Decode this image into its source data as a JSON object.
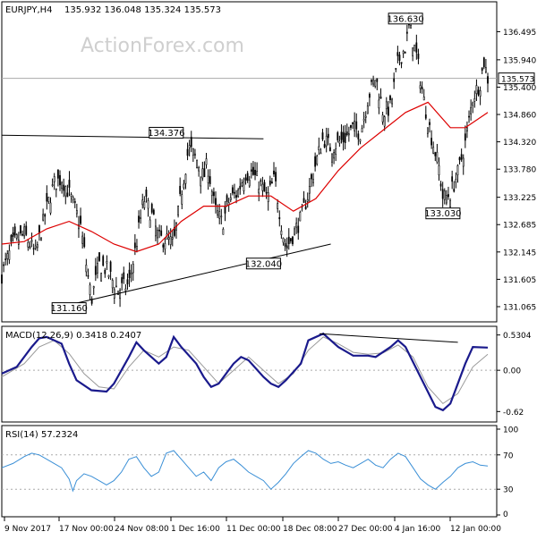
{
  "chart_data": [
    {
      "type": "candlestick",
      "symbol": "EURJPY,H4",
      "ohlc": "135.932 136.048 135.324 135.573",
      "watermark": "ActionForex.com",
      "ylim": [
        130.8,
        137.05
      ],
      "y_ticks": [
        "136.495",
        "135.940",
        "135.400",
        "134.860",
        "134.320",
        "133.780",
        "133.225",
        "132.685",
        "132.145",
        "131.605",
        "131.065"
      ],
      "x_ticks": [
        "9 Nov 2017",
        "17 Nov 00:00",
        "24 Nov 08:00",
        "1 Dec 16:00",
        "11 Dec 00:00",
        "18 Dec 08:00",
        "27 Dec 00:00",
        "4 Jan 16:00",
        "12 Jan 00:00"
      ],
      "last_price": "135.573",
      "last_price_value": 135.573,
      "annotations": [
        {
          "text": "136.630",
          "value": 136.63
        },
        {
          "text": "134.376",
          "value": 134.376
        },
        {
          "text": "133.030",
          "value": 133.03
        },
        {
          "text": "132.040",
          "value": 132.04
        },
        {
          "text": "131.160",
          "value": 131.16
        }
      ],
      "close_path": [
        [
          0,
          131.7
        ],
        [
          3,
          132.3
        ],
        [
          6,
          132.5
        ],
        [
          9,
          132.1
        ],
        [
          12,
          133.0
        ],
        [
          14,
          133.5
        ],
        [
          16,
          133.6
        ],
        [
          18,
          133.3
        ],
        [
          21,
          132.7
        ],
        [
          24,
          131.2
        ],
        [
          26,
          131.9
        ],
        [
          28,
          131.8
        ],
        [
          31,
          131.4
        ],
        [
          34,
          131.5
        ],
        [
          36,
          132.3
        ],
        [
          38,
          133.2
        ],
        [
          40,
          132.9
        ],
        [
          42,
          132.4
        ],
        [
          44,
          132.4
        ],
        [
          46,
          132.3
        ],
        [
          48,
          133.3
        ],
        [
          50,
          134.2
        ],
        [
          52,
          134.0
        ],
        [
          54,
          133.6
        ],
        [
          55,
          133.9
        ],
        [
          57,
          133.0
        ],
        [
          59,
          132.7
        ],
        [
          61,
          133.2
        ],
        [
          63,
          133.3
        ],
        [
          65,
          133.7
        ],
        [
          67,
          133.7
        ],
        [
          69,
          133.5
        ],
        [
          71,
          133.2
        ],
        [
          73,
          133.6
        ],
        [
          75,
          132.6
        ],
        [
          76,
          132.2
        ],
        [
          78,
          132.5
        ],
        [
          80,
          132.8
        ],
        [
          82,
          133.3
        ],
        [
          84,
          133.9
        ],
        [
          86,
          134.4
        ],
        [
          88,
          134.2
        ],
        [
          90,
          134.3
        ],
        [
          92,
          134.4
        ],
        [
          94,
          134.6
        ],
        [
          96,
          134.5
        ],
        [
          98,
          135.2
        ],
        [
          100,
          135.6
        ],
        [
          102,
          134.9
        ],
        [
          104,
          135.0
        ],
        [
          106,
          135.9
        ],
        [
          108,
          136.2
        ],
        [
          109,
          136.6
        ],
        [
          111,
          136.0
        ],
        [
          113,
          135.1
        ],
        [
          115,
          134.4
        ],
        [
          117,
          133.8
        ],
        [
          118,
          133.2
        ],
        [
          120,
          133.3
        ],
        [
          122,
          133.7
        ],
        [
          124,
          134.3
        ],
        [
          126,
          135.2
        ],
        [
          128,
          135.5
        ],
        [
          129,
          135.9
        ],
        [
          130,
          135.57
        ]
      ],
      "ma": [
        [
          0,
          132.3
        ],
        [
          6,
          132.35
        ],
        [
          12,
          132.6
        ],
        [
          18,
          132.75
        ],
        [
          24,
          132.55
        ],
        [
          30,
          132.3
        ],
        [
          36,
          132.15
        ],
        [
          42,
          132.3
        ],
        [
          48,
          132.75
        ],
        [
          54,
          133.05
        ],
        [
          60,
          133.05
        ],
        [
          66,
          133.25
        ],
        [
          72,
          133.25
        ],
        [
          78,
          132.95
        ],
        [
          84,
          133.2
        ],
        [
          90,
          133.75
        ],
        [
          96,
          134.2
        ],
        [
          102,
          134.55
        ],
        [
          108,
          134.9
        ],
        [
          114,
          135.1
        ],
        [
          120,
          134.6
        ],
        [
          124,
          134.6
        ],
        [
          130,
          134.9
        ]
      ],
      "trendlines": [
        {
          "from": [
            0,
            134.45
          ],
          "to": [
            70,
            134.38
          ]
        },
        {
          "from": [
            18,
            131.1
          ],
          "to": [
            88,
            132.3
          ]
        }
      ]
    },
    {
      "type": "line",
      "label": "MACD(12,26,9) 0.3418 0.2407",
      "ylim": [
        -0.75,
        0.62
      ],
      "y_ticks": [
        "0.5304",
        "0.00",
        "-0.62"
      ],
      "series": [
        {
          "values": [
            [
              0,
              -0.05
            ],
            [
              4,
              0.05
            ],
            [
              8,
              0.35
            ],
            [
              10,
              0.48
            ],
            [
              12,
              0.5
            ],
            [
              16,
              0.4
            ],
            [
              18,
              0.1
            ],
            [
              20,
              -0.15
            ],
            [
              24,
              -0.3
            ],
            [
              28,
              -0.32
            ],
            [
              30,
              -0.2
            ],
            [
              34,
              0.2
            ],
            [
              36,
              0.42
            ],
            [
              38,
              0.3
            ],
            [
              42,
              0.1
            ],
            [
              44,
              0.2
            ],
            [
              46,
              0.5
            ],
            [
              48,
              0.35
            ],
            [
              52,
              0.1
            ],
            [
              54,
              -0.1
            ],
            [
              56,
              -0.25
            ],
            [
              58,
              -0.2
            ],
            [
              62,
              0.1
            ],
            [
              64,
              0.2
            ],
            [
              66,
              0.15
            ],
            [
              70,
              -0.1
            ],
            [
              72,
              -0.2
            ],
            [
              74,
              -0.25
            ],
            [
              76,
              -0.15
            ],
            [
              80,
              0.1
            ],
            [
              82,
              0.45
            ],
            [
              86,
              0.55
            ],
            [
              90,
              0.35
            ],
            [
              94,
              0.22
            ],
            [
              98,
              0.22
            ],
            [
              100,
              0.2
            ],
            [
              104,
              0.35
            ],
            [
              106,
              0.45
            ],
            [
              108,
              0.35
            ],
            [
              112,
              -0.1
            ],
            [
              116,
              -0.55
            ],
            [
              118,
              -0.6
            ],
            [
              120,
              -0.5
            ],
            [
              124,
              0.1
            ],
            [
              126,
              0.35
            ],
            [
              130,
              0.34
            ]
          ]
        },
        {
          "values": [
            [
              0,
              -0.1
            ],
            [
              6,
              0.1
            ],
            [
              10,
              0.35
            ],
            [
              14,
              0.45
            ],
            [
              18,
              0.25
            ],
            [
              22,
              -0.05
            ],
            [
              26,
              -0.25
            ],
            [
              30,
              -0.28
            ],
            [
              34,
              0.05
            ],
            [
              38,
              0.3
            ],
            [
              42,
              0.2
            ],
            [
              46,
              0.35
            ],
            [
              50,
              0.3
            ],
            [
              54,
              0.05
            ],
            [
              58,
              -0.2
            ],
            [
              62,
              0.0
            ],
            [
              66,
              0.2
            ],
            [
              70,
              0.0
            ],
            [
              74,
              -0.2
            ],
            [
              78,
              -0.05
            ],
            [
              82,
              0.3
            ],
            [
              86,
              0.5
            ],
            [
              90,
              0.4
            ],
            [
              94,
              0.27
            ],
            [
              98,
              0.24
            ],
            [
              102,
              0.26
            ],
            [
              106,
              0.38
            ],
            [
              110,
              0.2
            ],
            [
              114,
              -0.25
            ],
            [
              118,
              -0.5
            ],
            [
              122,
              -0.35
            ],
            [
              126,
              0.05
            ],
            [
              130,
              0.24
            ]
          ]
        }
      ],
      "trendlines": [
        {
          "from": [
            85,
            0.55
          ],
          "to": [
            122,
            0.42
          ]
        }
      ]
    },
    {
      "type": "line",
      "label": "RSI(14) 57.2324",
      "ylim": [
        0,
        100
      ],
      "y_ticks": [
        "100",
        "70",
        "30",
        "0"
      ],
      "series": [
        {
          "values": [
            [
              0,
              55
            ],
            [
              3,
              60
            ],
            [
              6,
              68
            ],
            [
              8,
              72
            ],
            [
              10,
              70
            ],
            [
              12,
              65
            ],
            [
              14,
              60
            ],
            [
              16,
              55
            ],
            [
              18,
              42
            ],
            [
              19,
              28
            ],
            [
              20,
              40
            ],
            [
              22,
              48
            ],
            [
              24,
              45
            ],
            [
              26,
              40
            ],
            [
              28,
              35
            ],
            [
              30,
              40
            ],
            [
              32,
              50
            ],
            [
              34,
              65
            ],
            [
              36,
              68
            ],
            [
              38,
              55
            ],
            [
              40,
              45
            ],
            [
              42,
              50
            ],
            [
              44,
              72
            ],
            [
              46,
              75
            ],
            [
              48,
              65
            ],
            [
              50,
              55
            ],
            [
              52,
              45
            ],
            [
              54,
              50
            ],
            [
              56,
              40
            ],
            [
              58,
              55
            ],
            [
              60,
              62
            ],
            [
              62,
              65
            ],
            [
              64,
              58
            ],
            [
              66,
              50
            ],
            [
              68,
              45
            ],
            [
              70,
              40
            ],
            [
              72,
              30
            ],
            [
              74,
              38
            ],
            [
              76,
              48
            ],
            [
              78,
              60
            ],
            [
              80,
              68
            ],
            [
              82,
              75
            ],
            [
              84,
              72
            ],
            [
              86,
              65
            ],
            [
              88,
              60
            ],
            [
              90,
              62
            ],
            [
              92,
              58
            ],
            [
              94,
              55
            ],
            [
              96,
              60
            ],
            [
              98,
              65
            ],
            [
              100,
              58
            ],
            [
              102,
              55
            ],
            [
              104,
              65
            ],
            [
              106,
              72
            ],
            [
              108,
              68
            ],
            [
              110,
              55
            ],
            [
              112,
              42
            ],
            [
              114,
              35
            ],
            [
              116,
              30
            ],
            [
              118,
              38
            ],
            [
              120,
              45
            ],
            [
              122,
              55
            ],
            [
              124,
              60
            ],
            [
              126,
              62
            ],
            [
              128,
              58
            ],
            [
              130,
              57
            ]
          ]
        }
      ],
      "reference_lines": [
        70,
        30
      ]
    }
  ],
  "colors": {
    "price": "#000000",
    "ma": "#dd0000",
    "macd": "#1a1a8c",
    "signal": "#999999",
    "rsi": "#3a8fd6",
    "watermark": "#cccccc",
    "grid": "#aaaaaa"
  }
}
